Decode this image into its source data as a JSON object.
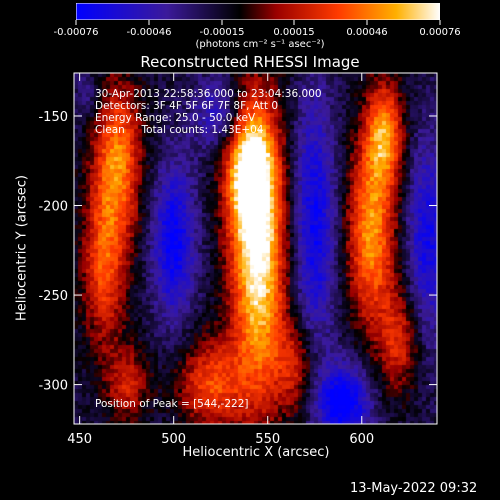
{
  "colorbar": {
    "ticks": [
      "-0.00076",
      "-0.00046",
      "-0.00015",
      "0.00015",
      "0.00046",
      "0.00076"
    ],
    "unit_label": "(photons cm⁻² s⁻¹ asec⁻²)",
    "colors": [
      "#0000ff",
      "#3b1a9a",
      "#000000",
      "#9a0000",
      "#ff3a00",
      "#ffb000",
      "#ffffff"
    ]
  },
  "plot": {
    "title": "Reconstructed RHESSI Image",
    "xlabel": "Heliocentric X (arcsec)",
    "ylabel": "Heliocentric Y (arcsec)",
    "info_lines": [
      "30-Apr-2013 22:58:36.000 to 23:04:36.000",
      "Detectors: 3F 4F 5F 6F 7F 8F, Att 0",
      "Energy Range: 25.0 - 50.0 keV",
      "Clean     Total counts: 1.43E+04"
    ],
    "peak_label": "Position of Peak = [544,-222]"
  },
  "chart_data": {
    "type": "heatmap",
    "title": "Reconstructed RHESSI Image",
    "xlabel": "Heliocentric X (arcsec)",
    "ylabel": "Heliocentric Y (arcsec)",
    "xlim": [
      447,
      640
    ],
    "ylim": [
      -322,
      -126
    ],
    "x_ticks": [
      450,
      500,
      550,
      600
    ],
    "y_ticks": [
      -150,
      -200,
      -250,
      -300
    ],
    "zlim": [
      -0.00076,
      0.00076
    ],
    "peak": [
      544,
      -222
    ],
    "sources": [
      {
        "x": 545,
        "y": -230,
        "sx": 10,
        "sy": 55,
        "amp": 1.0
      },
      {
        "x": 540,
        "y": -180,
        "sx": 9,
        "sy": 25,
        "amp": 0.85
      },
      {
        "x": 470,
        "y": -175,
        "sx": 9,
        "sy": 30,
        "amp": 0.7
      },
      {
        "x": 463,
        "y": -235,
        "sx": 8,
        "sy": 30,
        "amp": 0.55
      },
      {
        "x": 612,
        "y": -160,
        "sx": 7,
        "sy": 20,
        "amp": 0.7
      },
      {
        "x": 605,
        "y": -215,
        "sx": 9,
        "sy": 35,
        "amp": 0.75
      },
      {
        "x": 620,
        "y": -275,
        "sx": 8,
        "sy": 20,
        "amp": 0.45
      },
      {
        "x": 520,
        "y": -300,
        "sx": 12,
        "sy": 18,
        "amp": 0.55
      },
      {
        "x": 565,
        "y": -290,
        "sx": 8,
        "sy": 18,
        "amp": 0.4
      },
      {
        "x": 475,
        "y": -300,
        "sx": 8,
        "sy": 15,
        "amp": 0.4
      },
      {
        "x": 500,
        "y": -220,
        "sx": 8,
        "sy": 30,
        "amp": -0.6
      },
      {
        "x": 575,
        "y": -210,
        "sx": 8,
        "sy": 50,
        "amp": -0.55
      },
      {
        "x": 525,
        "y": -150,
        "sx": 10,
        "sy": 15,
        "amp": -0.4
      },
      {
        "x": 635,
        "y": -220,
        "sx": 8,
        "sy": 40,
        "amp": -0.5
      },
      {
        "x": 590,
        "y": -310,
        "sx": 10,
        "sy": 15,
        "amp": -0.7
      },
      {
        "x": 455,
        "y": -140,
        "sx": 6,
        "sy": 10,
        "amp": -0.2
      }
    ]
  },
  "footer": {
    "timestamp": "13-May-2022 09:32"
  }
}
